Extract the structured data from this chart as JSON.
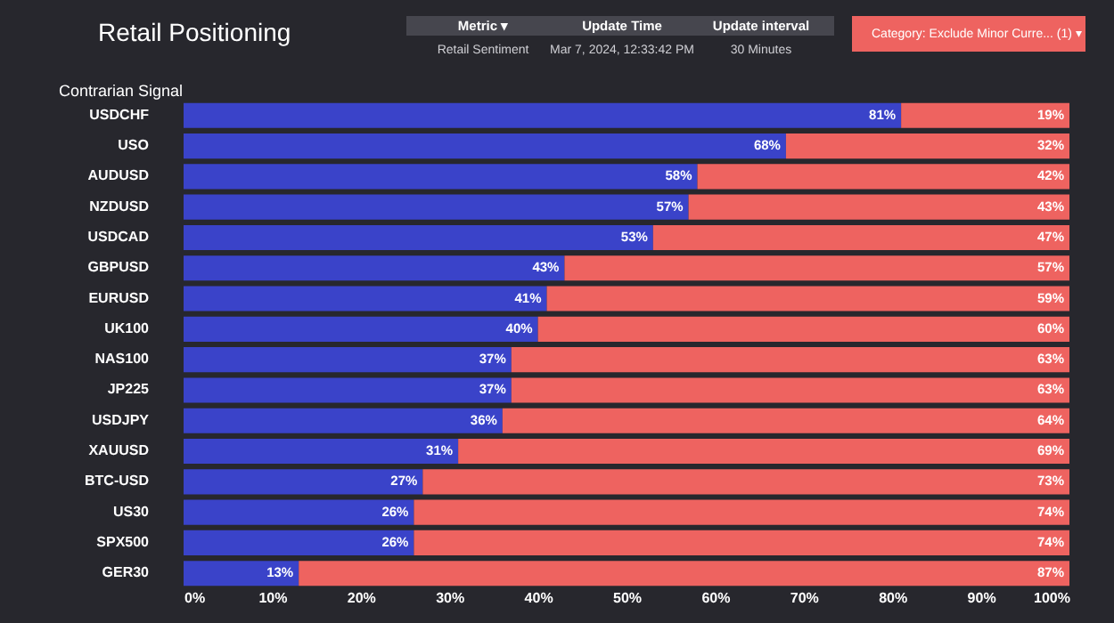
{
  "chart_data": {
    "type": "bar",
    "orientation": "horizontal",
    "stacked": true,
    "title": "Retail Positioning",
    "annotations": [
      "Contrarian Signal",
      "Metric ▾",
      "Update Time",
      "Update interval",
      "Retail Sentiment",
      "Mar 7, 2024, 12:33:42 PM",
      "30 Minutes",
      "Category: Exclude Minor Curre... (1) ▾"
    ],
    "categories": [
      "USDCHF",
      "USO",
      "AUDUSD",
      "NZDUSD",
      "USDCAD",
      "GBPUSD",
      "EURUSD",
      "UK100",
      "NAS100",
      "JP225",
      "USDJPY",
      "XAUUSD",
      "BTC-USD",
      "US30",
      "SPX500",
      "GER30"
    ],
    "series": [
      {
        "color": "#3a43c9",
        "values": [
          81,
          68,
          58,
          57,
          53,
          43,
          41,
          40,
          37,
          37,
          36,
          31,
          27,
          26,
          26,
          13
        ],
        "value_labels": [
          "81%",
          "68%",
          "58%",
          "57%",
          "53%",
          "43%",
          "41%",
          "40%",
          "37%",
          "37%",
          "36%",
          "31%",
          "27%",
          "26%",
          "26%",
          "13%"
        ]
      },
      {
        "color": "#ee6360",
        "values": [
          19,
          32,
          42,
          43,
          47,
          57,
          59,
          60,
          63,
          63,
          64,
          69,
          73,
          74,
          74,
          87
        ],
        "value_labels": [
          "19%",
          "32%",
          "42%",
          "43%",
          "47%",
          "57%",
          "59%",
          "60%",
          "63%",
          "63%",
          "64%",
          "69%",
          "73%",
          "74%",
          "74%",
          "87%"
        ]
      }
    ],
    "xlim": [
      0,
      100
    ],
    "xticks": [
      {
        "value": 0,
        "label": "0%"
      },
      {
        "value": 10,
        "label": "10%"
      },
      {
        "value": 20,
        "label": "20%"
      },
      {
        "value": 30,
        "label": "30%"
      },
      {
        "value": 40,
        "label": "40%"
      },
      {
        "value": 50,
        "label": "50%"
      },
      {
        "value": 60,
        "label": "60%"
      },
      {
        "value": 70,
        "label": "70%"
      },
      {
        "value": 80,
        "label": "80%"
      },
      {
        "value": 90,
        "label": "90%"
      },
      {
        "value": 100,
        "label": "100%"
      }
    ],
    "legend": false,
    "grid": false
  }
}
